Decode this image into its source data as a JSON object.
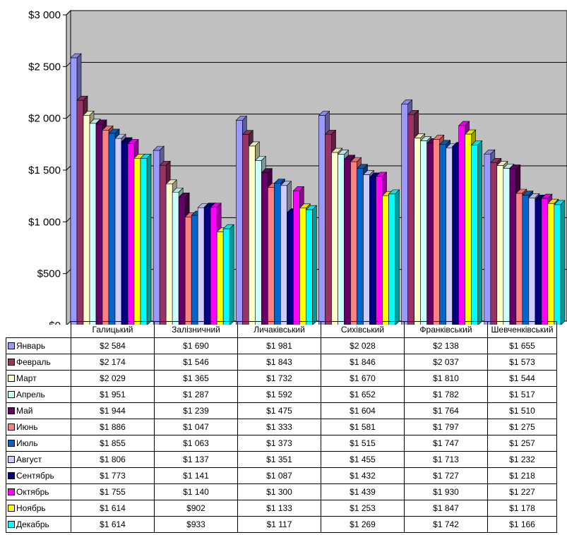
{
  "chart_data": {
    "type": "bar",
    "title": "",
    "xlabel": "",
    "ylabel": "",
    "ylim": [
      0,
      3000
    ],
    "yticks": [
      "$0",
      "$500",
      "$1 000",
      "$1 500",
      "$2 000",
      "$2 500",
      "$3 000"
    ],
    "grid": true,
    "legend_placement": "data table below chart",
    "plot_background": "#C0C0C0",
    "categories": [
      "Галицький",
      "Залізничний",
      "Личаківський",
      "Сихівський",
      "Франківський",
      "Шевченківський"
    ],
    "series": [
      {
        "name": "Январь",
        "color": "#9999FF",
        "values": [
          2584,
          1690,
          1981,
          2028,
          2138,
          1655
        ],
        "labels": [
          "$2 584",
          "$1 690",
          "$1 981",
          "$2 028",
          "$2 138",
          "$1 655"
        ]
      },
      {
        "name": "Февраль",
        "color": "#993366",
        "values": [
          2174,
          1546,
          1843,
          1846,
          2037,
          1573
        ],
        "labels": [
          "$2 174",
          "$1 546",
          "$1 843",
          "$1 846",
          "$2 037",
          "$1 573"
        ]
      },
      {
        "name": "Март",
        "color": "#FFFFCC",
        "values": [
          2029,
          1365,
          1732,
          1670,
          1810,
          1544
        ],
        "labels": [
          "$2 029",
          "$1 365",
          "$1 732",
          "$1 670",
          "$1 810",
          "$1 544"
        ]
      },
      {
        "name": "Апрель",
        "color": "#CCFFFF",
        "values": [
          1951,
          1287,
          1592,
          1652,
          1782,
          1517
        ],
        "labels": [
          "$1 951",
          "$1 287",
          "$1 592",
          "$1 652",
          "$1 782",
          "$1 517"
        ]
      },
      {
        "name": "Май",
        "color": "#660066",
        "values": [
          1944,
          1239,
          1475,
          1604,
          1764,
          1510
        ],
        "labels": [
          "$1 944",
          "$1 239",
          "$1 475",
          "$1 604",
          "$1 764",
          "$1 510"
        ]
      },
      {
        "name": "Июнь",
        "color": "#FF8080",
        "values": [
          1886,
          1047,
          1333,
          1581,
          1797,
          1275
        ],
        "labels": [
          "$1 886",
          "$1 047",
          "$1 333",
          "$1 581",
          "$1 797",
          "$1 275"
        ]
      },
      {
        "name": "Июль",
        "color": "#0066CC",
        "values": [
          1855,
          1063,
          1373,
          1515,
          1747,
          1257
        ],
        "labels": [
          "$1 855",
          "$1 063",
          "$1 373",
          "$1 515",
          "$1 747",
          "$1 257"
        ]
      },
      {
        "name": "Август",
        "color": "#CCCCFF",
        "values": [
          1806,
          1137,
          1351,
          1455,
          1713,
          1232
        ],
        "labels": [
          "$1 806",
          "$1 137",
          "$1 351",
          "$1 455",
          "$1 713",
          "$1 232"
        ]
      },
      {
        "name": "Сентябрь",
        "color": "#000080",
        "values": [
          1773,
          1141,
          1087,
          1432,
          1727,
          1218
        ],
        "labels": [
          "$1 773",
          "$1 141",
          "$1 087",
          "$1 432",
          "$1 727",
          "$1 218"
        ]
      },
      {
        "name": "Октябрь",
        "color": "#FF00FF",
        "values": [
          1755,
          1140,
          1300,
          1439,
          1930,
          1227
        ],
        "labels": [
          "$1 755",
          "$1 140",
          "$1 300",
          "$1 439",
          "$1 930",
          "$1 227"
        ]
      },
      {
        "name": "Ноябрь",
        "color": "#FFFF00",
        "values": [
          1614,
          902,
          1133,
          1253,
          1847,
          1178
        ],
        "labels": [
          "$1 614",
          "$902",
          "$1 133",
          "$1 253",
          "$1 847",
          "$1 178"
        ]
      },
      {
        "name": "Декабрь",
        "color": "#00FFFF",
        "values": [
          1614,
          933,
          1117,
          1269,
          1742,
          1166
        ],
        "labels": [
          "$1 614",
          "$933",
          "$1 117",
          "$1 269",
          "$1 742",
          "$1 166"
        ]
      }
    ]
  }
}
